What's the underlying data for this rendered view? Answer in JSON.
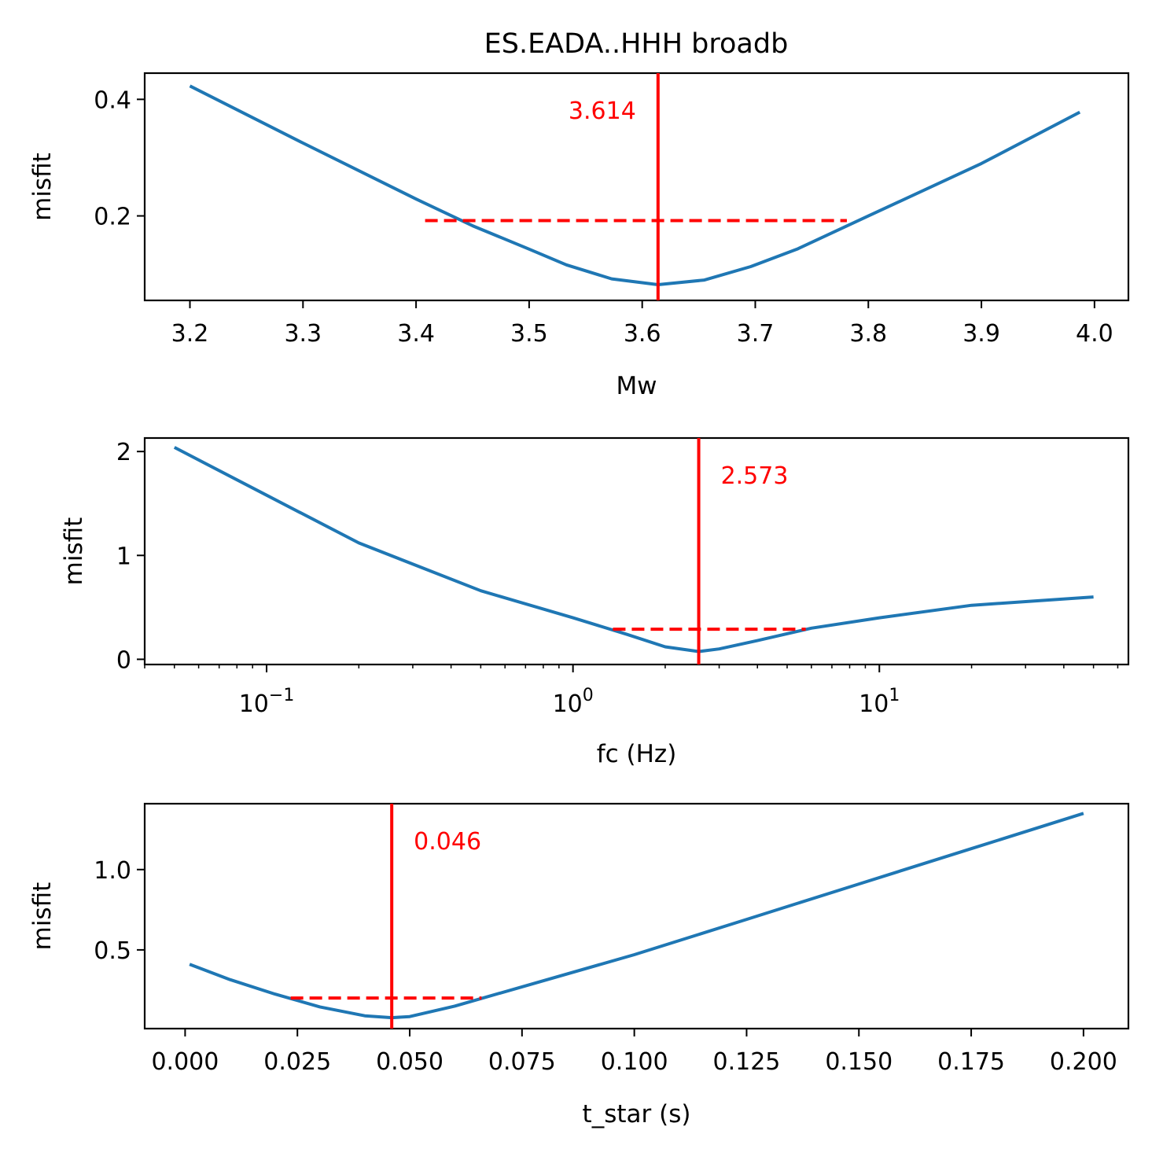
{
  "figure": {
    "title": "ES.EADA..HHH broadb"
  },
  "chart_data": [
    {
      "type": "line",
      "xlabel": "Mw",
      "ylabel": "misfit",
      "xscale": "linear",
      "xlim": [
        3.16,
        4.03
      ],
      "ylim": [
        0.055,
        0.445
      ],
      "xticks": [
        3.2,
        3.3,
        3.4,
        3.5,
        3.6,
        3.7,
        3.8,
        3.9,
        4.0
      ],
      "xtick_labels": [
        "3.2",
        "3.3",
        "3.4",
        "3.5",
        "3.6",
        "3.7",
        "3.8",
        "3.9",
        "4.0"
      ],
      "yticks": [
        0.2,
        0.4
      ],
      "ytick_labels": [
        "0.2",
        "0.4"
      ],
      "series": [
        {
          "color": "#1f77b4",
          "x": [
            3.2,
            3.3,
            3.4,
            3.45,
            3.5,
            3.533,
            3.573,
            3.614,
            3.655,
            3.696,
            3.737,
            3.8,
            3.9,
            3.987
          ],
          "y": [
            0.423,
            0.325,
            0.229,
            0.183,
            0.143,
            0.116,
            0.092,
            0.082,
            0.09,
            0.113,
            0.143,
            0.2,
            0.29,
            0.378
          ]
        }
      ],
      "best_value": 3.614,
      "best_label": "3.614",
      "best_label_position": "left",
      "interval": {
        "from": 3.408,
        "to": 3.781,
        "misfit": 0.192
      },
      "marker_color": "#ff0000"
    },
    {
      "type": "line",
      "xlabel": "fc (Hz)",
      "ylabel": "misfit",
      "xscale": "log",
      "xlim": [
        0.04,
        65
      ],
      "ylim": [
        -0.05,
        2.13
      ],
      "xticks": [
        0.1,
        1,
        10
      ],
      "xtick_base": "10",
      "xtick_exponents": [
        "−1",
        "0",
        "1"
      ],
      "yticks": [
        0,
        1,
        2
      ],
      "ytick_labels": [
        "0",
        "1",
        "2"
      ],
      "series": [
        {
          "color": "#1f77b4",
          "x": [
            0.05,
            0.1,
            0.2,
            0.5,
            1.0,
            1.5,
            2.0,
            2.573,
            3.0,
            4.0,
            6.0,
            10,
            20,
            50
          ],
          "y": [
            2.04,
            1.58,
            1.12,
            0.66,
            0.4,
            0.24,
            0.12,
            0.075,
            0.1,
            0.18,
            0.3,
            0.4,
            0.52,
            0.6
          ]
        }
      ],
      "best_value": 2.573,
      "best_label": "2.573",
      "best_label_position": "right",
      "interval": {
        "from": 1.35,
        "to": 5.75,
        "misfit": 0.29
      },
      "marker_color": "#ff0000"
    },
    {
      "type": "line",
      "xlabel": "t_star (s)",
      "ylabel": "misfit",
      "xscale": "linear",
      "xlim": [
        -0.009,
        0.21
      ],
      "ylim": [
        0.01,
        1.41
      ],
      "xticks": [
        0.0,
        0.025,
        0.05,
        0.075,
        0.1,
        0.125,
        0.15,
        0.175,
        0.2
      ],
      "xtick_labels": [
        "0.000",
        "0.025",
        "0.050",
        "0.075",
        "0.100",
        "0.125",
        "0.150",
        "0.175",
        "0.200"
      ],
      "yticks": [
        0.5,
        1.0
      ],
      "ytick_labels": [
        "0.5",
        "1.0"
      ],
      "series": [
        {
          "color": "#1f77b4",
          "x": [
            0.001,
            0.01,
            0.02,
            0.03,
            0.04,
            0.046,
            0.05,
            0.06,
            0.075,
            0.1,
            0.125,
            0.15,
            0.175,
            0.2
          ],
          "y": [
            0.41,
            0.315,
            0.225,
            0.145,
            0.09,
            0.078,
            0.085,
            0.15,
            0.27,
            0.47,
            0.69,
            0.91,
            1.13,
            1.35
          ]
        }
      ],
      "best_value": 0.046,
      "best_label": "0.046",
      "best_label_position": "right",
      "interval": {
        "from": 0.0235,
        "to": 0.066,
        "misfit": 0.2
      },
      "marker_color": "#ff0000"
    }
  ]
}
